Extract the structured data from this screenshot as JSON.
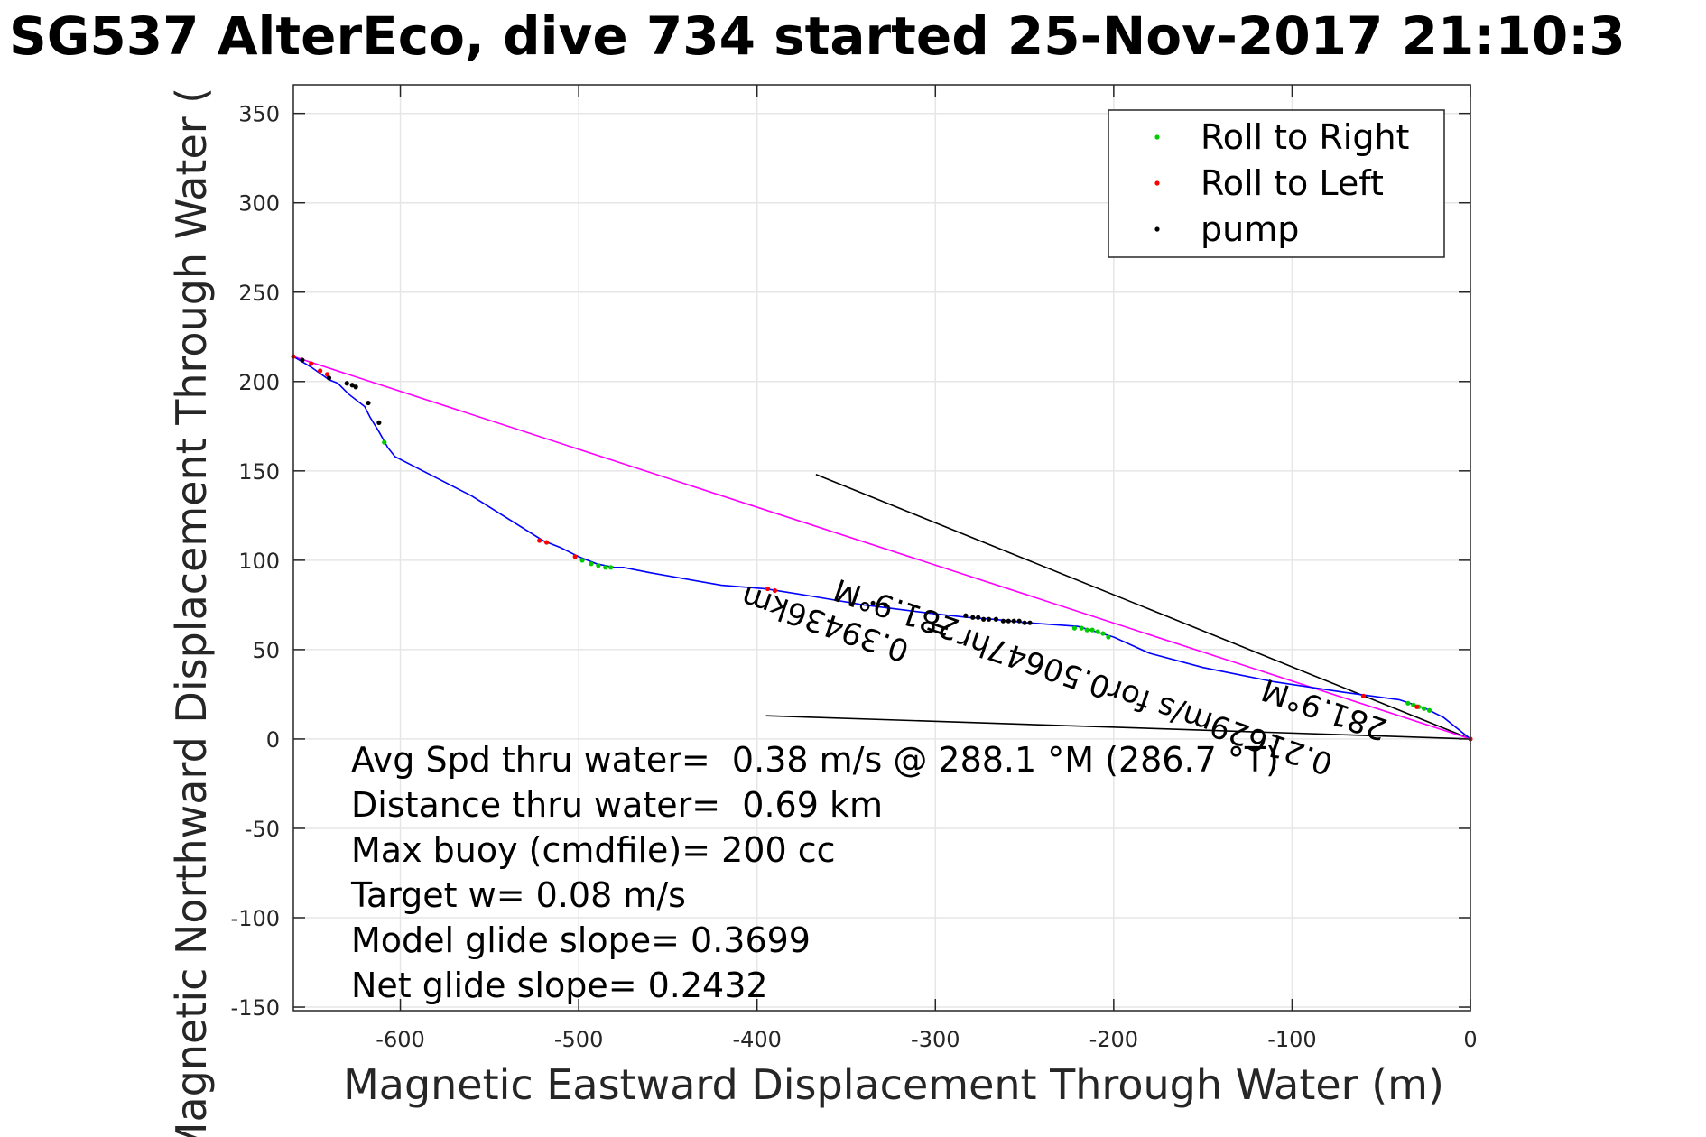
{
  "chart_data": {
    "type": "scatter",
    "title": "SG537 AlterEco, dive 734 started 25-Nov-2017 21:10:3",
    "xlabel": "Magnetic Eastward Displacement Through Water (m)",
    "ylabel": "Magnetic Northward Displacement Through Water (",
    "xlim": [
      -660,
      0
    ],
    "ylim": [
      -152,
      366
    ],
    "grid": true,
    "x_ticks": [
      -600,
      -500,
      -400,
      -300,
      -200,
      -100,
      0
    ],
    "y_ticks": [
      350,
      300,
      250,
      200,
      150,
      100,
      50,
      0,
      -50,
      -100,
      -150
    ],
    "legend_position": "top-right",
    "legend": [
      {
        "label": "Roll to Right",
        "color": "#00cc00"
      },
      {
        "label": "Roll to Left",
        "color": "#ff0000"
      },
      {
        "label": "pump",
        "color": "#000000"
      }
    ],
    "colors": {
      "track": "#0000ff",
      "net": "#ff00ff",
      "heading": "#000000",
      "axes": "#262626",
      "grid": "#e6e6e6"
    },
    "track": {
      "name": "track",
      "x": [
        -660,
        -650,
        -640,
        -635,
        -629,
        -620,
        -617,
        -612,
        -607,
        -603,
        -560,
        -520,
        -510,
        -500,
        -490,
        -480,
        -475,
        -460,
        -420,
        -395,
        -370,
        -340,
        -300,
        -282,
        -268,
        -248,
        -220,
        -200,
        -180,
        -150,
        -110,
        -70,
        -40,
        -25,
        -15,
        0
      ],
      "y": [
        214,
        208,
        201,
        199,
        193,
        186,
        180,
        172,
        163,
        158,
        136,
        111,
        107,
        102,
        98,
        96,
        96,
        93,
        86,
        84,
        80,
        75,
        70,
        68,
        67,
        65,
        63,
        57,
        48,
        40,
        32,
        26,
        22,
        17,
        12,
        0
      ]
    },
    "net_line": {
      "name": "net",
      "x": [
        -660,
        0
      ],
      "y": [
        214,
        0
      ]
    },
    "heading_lines": [
      {
        "x": [
          -367,
          0
        ],
        "y": [
          148,
          0
        ]
      },
      {
        "x": [
          -395,
          0
        ],
        "y": [
          13,
          0
        ]
      }
    ],
    "roll_right": {
      "x": [
        -609,
        -498,
        -493,
        -489,
        -485,
        -482,
        -222,
        -218,
        -215,
        -212,
        -209,
        -206,
        -203,
        -35,
        -32,
        -29,
        -26,
        -23
      ],
      "y": [
        166,
        100,
        98,
        97,
        96,
        96,
        62,
        62,
        61,
        61,
        60,
        59,
        57,
        20,
        19,
        18,
        17,
        16
      ]
    },
    "roll_left": {
      "x": [
        -660,
        -650,
        -645,
        -641,
        -522,
        -518,
        -502,
        -394,
        -390,
        -60,
        -30,
        0
      ],
      "y": [
        214,
        210,
        206,
        204,
        111,
        110,
        102,
        84,
        83,
        24,
        18,
        0
      ]
    },
    "pump": {
      "x": [
        -655,
        -640,
        -630,
        -627,
        -625,
        -618,
        -612,
        -335,
        -328,
        -283,
        -279,
        -276,
        -273,
        -270,
        -266,
        -262,
        -259,
        -256,
        -253,
        -250,
        -247
      ],
      "y": [
        212,
        202,
        199,
        198,
        197,
        188,
        177,
        76,
        75,
        69,
        68,
        68,
        67,
        67,
        67,
        66,
        66,
        66,
        66,
        65,
        65
      ]
    },
    "track_labels": [
      {
        "text": "281.9°M",
        "x": -320,
        "y": 78,
        "angle": 199
      },
      {
        "text": "0.39436km",
        "x": -360,
        "y": 70,
        "angle": 199
      },
      {
        "text": "0.21629m/s for0.50647hr =",
        "x": -190,
        "y": 30,
        "angle": 199
      },
      {
        "text": "281.9°M",
        "x": -80,
        "y": 22,
        "angle": 199
      }
    ],
    "annotations": [
      "Avg Spd thru water=  0.38 m/s @ 288.1 °M (286.7 °T)",
      "Distance thru water=  0.69 km",
      "Max buoy (cmdfile)= 200 cc",
      "Target w= 0.08 m/s",
      "Model glide slope= 0.3699",
      "Net glide slope= 0.2432"
    ]
  }
}
